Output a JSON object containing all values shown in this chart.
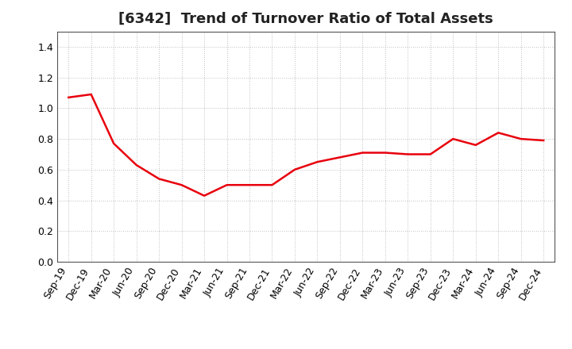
{
  "title": "[6342]  Trend of Turnover Ratio of Total Assets",
  "x_labels": [
    "Sep-19",
    "Dec-19",
    "Mar-20",
    "Jun-20",
    "Sep-20",
    "Dec-20",
    "Mar-21",
    "Jun-21",
    "Sep-21",
    "Dec-21",
    "Mar-22",
    "Jun-22",
    "Sep-22",
    "Dec-22",
    "Mar-23",
    "Jun-23",
    "Sep-23",
    "Dec-23",
    "Mar-24",
    "Jun-24",
    "Sep-24",
    "Dec-24"
  ],
  "y_values": [
    1.07,
    1.09,
    0.77,
    0.63,
    0.54,
    0.5,
    0.43,
    0.5,
    0.5,
    0.5,
    0.6,
    0.65,
    0.68,
    0.71,
    0.71,
    0.7,
    0.7,
    0.8,
    0.76,
    0.84,
    0.8,
    0.79
  ],
  "line_color": "#e8000d",
  "line_width": 1.8,
  "ylim": [
    0.0,
    1.5
  ],
  "yticks": [
    0.0,
    0.2,
    0.4,
    0.6,
    0.8,
    1.0,
    1.2,
    1.4
  ],
  "grid_color": "#aaaaaa",
  "background_color": "#ffffff",
  "title_fontsize": 13,
  "tick_fontsize": 9,
  "title_color": "#222222",
  "spine_color": "#555555"
}
